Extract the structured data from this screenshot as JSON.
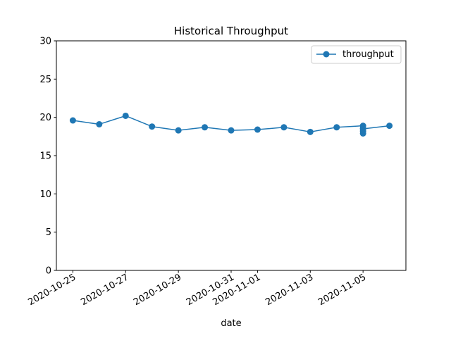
{
  "chart_data": {
    "type": "line",
    "title": "Historical Throughput",
    "xlabel": "date",
    "ylabel": "",
    "ylim": [
      0,
      30
    ],
    "yticks": [
      0,
      5,
      10,
      15,
      20,
      25,
      30
    ],
    "xlim": [
      "2020-10-24T09:00",
      "2020-11-06T15:00"
    ],
    "xticks": [
      "2020-10-25",
      "2020-10-27",
      "2020-10-29",
      "2020-10-31",
      "2020-11-01",
      "2020-11-03",
      "2020-11-05"
    ],
    "grid": false,
    "legend_position": "top-right",
    "series": [
      {
        "name": "throughput",
        "color": "#1f77b4",
        "marker": "circle",
        "points": [
          {
            "x": "2020-10-25",
            "y": 19.6
          },
          {
            "x": "2020-10-26",
            "y": 19.1
          },
          {
            "x": "2020-10-27",
            "y": 20.2
          },
          {
            "x": "2020-10-28",
            "y": 18.8
          },
          {
            "x": "2020-10-29",
            "y": 18.3
          },
          {
            "x": "2020-10-30",
            "y": 18.7
          },
          {
            "x": "2020-10-31",
            "y": 18.3
          },
          {
            "x": "2020-11-01",
            "y": 18.4
          },
          {
            "x": "2020-11-02",
            "y": 18.7
          },
          {
            "x": "2020-11-03",
            "y": 18.1
          },
          {
            "x": "2020-11-04",
            "y": 18.7
          },
          {
            "x": "2020-11-05",
            "y": 18.9
          },
          {
            "x": "2020-11-05",
            "y": 18.6
          },
          {
            "x": "2020-11-05",
            "y": 18.2
          },
          {
            "x": "2020-11-05",
            "y": 17.9
          },
          {
            "x": "2020-11-05",
            "y": 18.5
          },
          {
            "x": "2020-11-06",
            "y": 18.9
          }
        ]
      }
    ]
  }
}
